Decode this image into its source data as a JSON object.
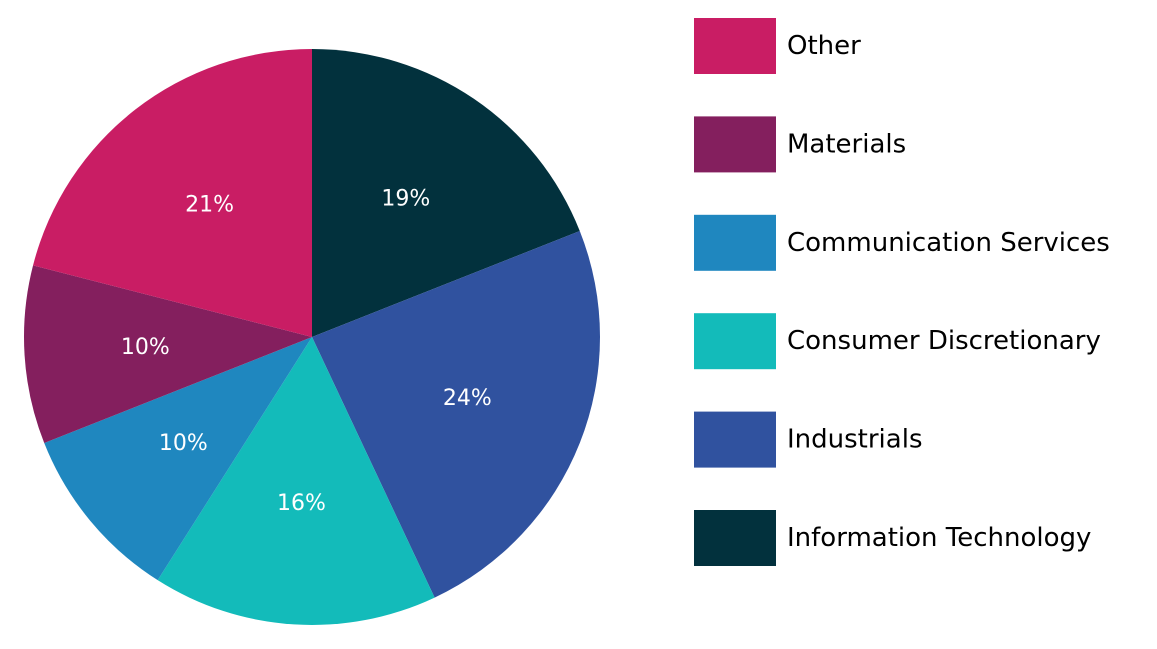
{
  "chart_data": {
    "type": "pie",
    "start": "top",
    "direction": "clockwise",
    "legend_position": "right",
    "slices": [
      {
        "label": "Information Technology",
        "value": 19,
        "display": "19%",
        "color": "#02313d"
      },
      {
        "label": "Industrials",
        "value": 24,
        "display": "24%",
        "color": "#30529f"
      },
      {
        "label": "Consumer Discretionary",
        "value": 16,
        "display": "16%",
        "color": "#13bbba"
      },
      {
        "label": "Communication Services",
        "value": 10,
        "display": "10%",
        "color": "#1f87bf"
      },
      {
        "label": "Materials",
        "value": 10,
        "display": "10%",
        "color": "#841f5e"
      },
      {
        "label": "Other",
        "value": 21,
        "display": "21%",
        "color": "#c91d64"
      }
    ],
    "legend": [
      "Other",
      "Materials",
      "Communication Services",
      "Consumer Discretionary",
      "Industrials",
      "Information Technology"
    ]
  }
}
